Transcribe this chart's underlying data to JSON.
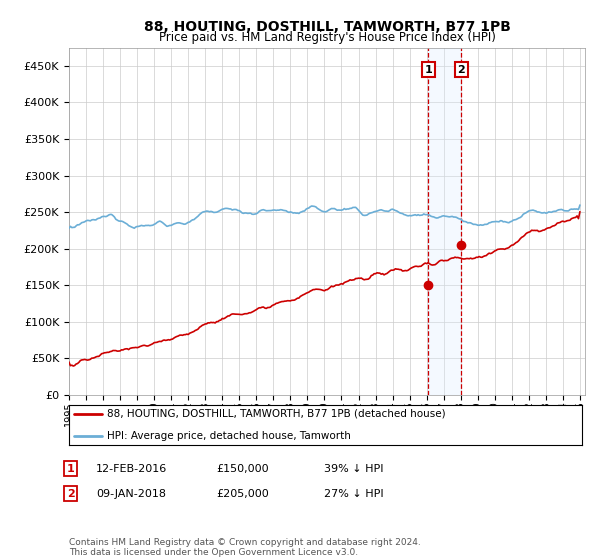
{
  "title": "88, HOUTING, DOSTHILL, TAMWORTH, B77 1PB",
  "subtitle": "Price paid vs. HM Land Registry's House Price Index (HPI)",
  "legend_line1": "88, HOUTING, DOSTHILL, TAMWORTH, B77 1PB (detached house)",
  "legend_line2": "HPI: Average price, detached house, Tamworth",
  "annotation1_date": "12-FEB-2016",
  "annotation1_price": "£150,000",
  "annotation1_pct": "39% ↓ HPI",
  "annotation1_year": 2016.1,
  "annotation1_value": 150000,
  "annotation2_date": "09-JAN-2018",
  "annotation2_price": "£205,000",
  "annotation2_pct": "27% ↓ HPI",
  "annotation2_year": 2018.03,
  "annotation2_value": 205000,
  "hpi_color": "#6baed6",
  "price_color": "#cc0000",
  "vline_color": "#cc0000",
  "shade_color": "#ddeeff",
  "annotation_box_color": "#cc0000",
  "ylim_min": 0,
  "ylim_max": 475000,
  "footer": "Contains HM Land Registry data © Crown copyright and database right 2024.\nThis data is licensed under the Open Government Licence v3.0.",
  "background_color": "#ffffff",
  "grid_color": "#cccccc"
}
